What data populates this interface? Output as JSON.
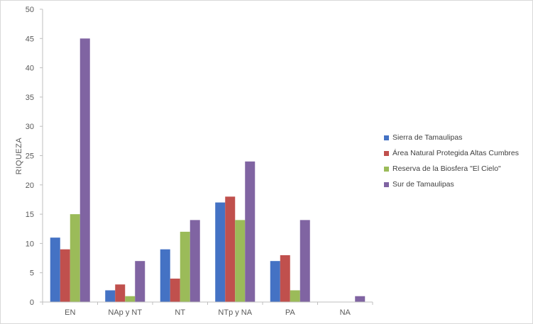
{
  "chart_data": {
    "type": "bar",
    "title": "",
    "xlabel": "",
    "ylabel": "RIQUEZA",
    "ylim": [
      0,
      50
    ],
    "yticks": [
      0,
      5,
      10,
      15,
      20,
      25,
      30,
      35,
      40,
      45,
      50
    ],
    "grid": false,
    "legend_position": "right",
    "categories": [
      "EN",
      "NAp y NT",
      "NT",
      "NTp y NA",
      "PA",
      "NA"
    ],
    "series": [
      {
        "name": "Sierra de Tamaulipas",
        "color": "#4472c4",
        "values": [
          11,
          2,
          9,
          17,
          7,
          0
        ]
      },
      {
        "name": "Área Natural Protegida Altas Cumbres",
        "color": "#c0504d",
        "values": [
          9,
          3,
          4,
          18,
          8,
          0
        ]
      },
      {
        "name": "Reserva de la Biosfera \"El Cielo\"",
        "color": "#9bbb59",
        "values": [
          15,
          1,
          12,
          14,
          2,
          0
        ]
      },
      {
        "name": "Sur de Tamaulipas",
        "color": "#8064a2",
        "values": [
          45,
          7,
          14,
          24,
          14,
          1
        ]
      }
    ]
  }
}
